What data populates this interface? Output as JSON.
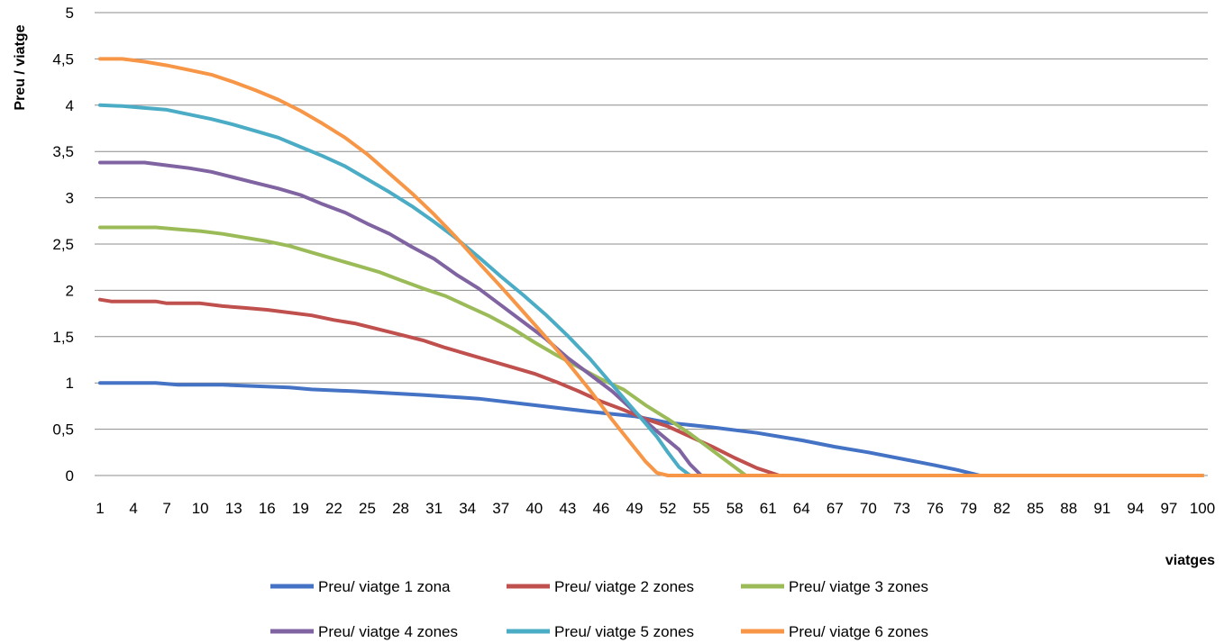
{
  "chart_data": {
    "type": "line",
    "ylabel": "Preu / viatge",
    "xlabel": "viatges",
    "xlim": [
      1,
      100
    ],
    "ylim": [
      0,
      5
    ],
    "y_ticks": [
      "0",
      "0,5",
      "1",
      "1,5",
      "2",
      "2,5",
      "3",
      "3,5",
      "4",
      "4,5",
      "5"
    ],
    "x_ticks": [
      "1",
      "4",
      "7",
      "10",
      "13",
      "16",
      "19",
      "22",
      "25",
      "28",
      "31",
      "34",
      "37",
      "40",
      "43",
      "46",
      "49",
      "52",
      "55",
      "58",
      "61",
      "64",
      "67",
      "70",
      "73",
      "76",
      "79",
      "82",
      "85",
      "88",
      "91",
      "94",
      "97",
      "100"
    ],
    "grid": true,
    "legend_position": "bottom",
    "series": [
      {
        "name": "Preu/ viatge 1 zona",
        "color": "#4472C4",
        "points": [
          [
            1,
            1.0
          ],
          [
            6,
            1.0
          ],
          [
            8,
            0.98
          ],
          [
            12,
            0.98
          ],
          [
            18,
            0.95
          ],
          [
            20,
            0.93
          ],
          [
            24,
            0.91
          ],
          [
            30,
            0.87
          ],
          [
            35,
            0.83
          ],
          [
            40,
            0.76
          ],
          [
            45,
            0.69
          ],
          [
            49,
            0.64
          ],
          [
            52,
            0.57
          ],
          [
            56,
            0.52
          ],
          [
            60,
            0.46
          ],
          [
            64,
            0.38
          ],
          [
            67,
            0.31
          ],
          [
            70,
            0.25
          ],
          [
            73,
            0.18
          ],
          [
            76,
            0.11
          ],
          [
            78,
            0.06
          ],
          [
            80,
            0.0
          ],
          [
            100,
            0.0
          ]
        ]
      },
      {
        "name": "Preu/ viatge 2 zones",
        "color": "#C0504D",
        "points": [
          [
            1,
            1.9
          ],
          [
            2,
            1.88
          ],
          [
            6,
            1.88
          ],
          [
            7,
            1.86
          ],
          [
            10,
            1.86
          ],
          [
            12,
            1.83
          ],
          [
            14,
            1.81
          ],
          [
            16,
            1.79
          ],
          [
            20,
            1.73
          ],
          [
            22,
            1.68
          ],
          [
            24,
            1.64
          ],
          [
            26,
            1.58
          ],
          [
            28,
            1.52
          ],
          [
            30,
            1.46
          ],
          [
            32,
            1.38
          ],
          [
            34,
            1.31
          ],
          [
            36,
            1.24
          ],
          [
            38,
            1.17
          ],
          [
            40,
            1.1
          ],
          [
            42,
            1.01
          ],
          [
            44,
            0.91
          ],
          [
            46,
            0.8
          ],
          [
            48,
            0.71
          ],
          [
            50,
            0.61
          ],
          [
            52,
            0.53
          ],
          [
            54,
            0.42
          ],
          [
            56,
            0.31
          ],
          [
            58,
            0.19
          ],
          [
            60,
            0.08
          ],
          [
            62,
            0.0
          ],
          [
            100,
            0.0
          ]
        ]
      },
      {
        "name": "Preu/ viatge 3 zones",
        "color": "#9BBB59",
        "points": [
          [
            1,
            2.68
          ],
          [
            6,
            2.68
          ],
          [
            8,
            2.66
          ],
          [
            10,
            2.64
          ],
          [
            12,
            2.61
          ],
          [
            14,
            2.57
          ],
          [
            16,
            2.53
          ],
          [
            18,
            2.48
          ],
          [
            20,
            2.41
          ],
          [
            22,
            2.34
          ],
          [
            24,
            2.27
          ],
          [
            26,
            2.2
          ],
          [
            28,
            2.11
          ],
          [
            30,
            2.02
          ],
          [
            32,
            1.94
          ],
          [
            34,
            1.83
          ],
          [
            36,
            1.72
          ],
          [
            38,
            1.59
          ],
          [
            40,
            1.44
          ],
          [
            42,
            1.3
          ],
          [
            44,
            1.17
          ],
          [
            46,
            1.04
          ],
          [
            48,
            0.93
          ],
          [
            50,
            0.76
          ],
          [
            52,
            0.61
          ],
          [
            54,
            0.45
          ],
          [
            56,
            0.27
          ],
          [
            58,
            0.09
          ],
          [
            59,
            0.0
          ],
          [
            100,
            0.0
          ]
        ]
      },
      {
        "name": "Preu/ viatge 4 zones",
        "color": "#8064A2",
        "points": [
          [
            1,
            3.38
          ],
          [
            5,
            3.38
          ],
          [
            7,
            3.35
          ],
          [
            9,
            3.32
          ],
          [
            11,
            3.28
          ],
          [
            13,
            3.22
          ],
          [
            15,
            3.16
          ],
          [
            17,
            3.1
          ],
          [
            19,
            3.03
          ],
          [
            21,
            2.93
          ],
          [
            23,
            2.84
          ],
          [
            25,
            2.72
          ],
          [
            27,
            2.61
          ],
          [
            29,
            2.47
          ],
          [
            31,
            2.34
          ],
          [
            33,
            2.17
          ],
          [
            35,
            2.02
          ],
          [
            37,
            1.84
          ],
          [
            39,
            1.66
          ],
          [
            41,
            1.48
          ],
          [
            43,
            1.27
          ],
          [
            45,
            1.09
          ],
          [
            47,
            0.91
          ],
          [
            49,
            0.69
          ],
          [
            51,
            0.48
          ],
          [
            53,
            0.28
          ],
          [
            54,
            0.12
          ],
          [
            55,
            0.0
          ],
          [
            100,
            0.0
          ]
        ]
      },
      {
        "name": "Preu/ viatge 5 zones",
        "color": "#4BACC6",
        "points": [
          [
            1,
            4.0
          ],
          [
            3,
            3.99
          ],
          [
            5,
            3.97
          ],
          [
            7,
            3.95
          ],
          [
            9,
            3.9
          ],
          [
            11,
            3.85
          ],
          [
            13,
            3.79
          ],
          [
            15,
            3.72
          ],
          [
            17,
            3.65
          ],
          [
            19,
            3.55
          ],
          [
            21,
            3.45
          ],
          [
            23,
            3.34
          ],
          [
            25,
            3.2
          ],
          [
            27,
            3.06
          ],
          [
            29,
            2.91
          ],
          [
            31,
            2.74
          ],
          [
            33,
            2.56
          ],
          [
            35,
            2.36
          ],
          [
            37,
            2.15
          ],
          [
            39,
            1.95
          ],
          [
            41,
            1.74
          ],
          [
            43,
            1.51
          ],
          [
            45,
            1.26
          ],
          [
            47,
            0.98
          ],
          [
            49,
            0.7
          ],
          [
            51,
            0.42
          ],
          [
            52,
            0.25
          ],
          [
            53,
            0.09
          ],
          [
            54,
            0.0
          ],
          [
            100,
            0.0
          ]
        ]
      },
      {
        "name": "Preu/ viatge 6 zones",
        "color": "#F79646",
        "points": [
          [
            1,
            4.5
          ],
          [
            3,
            4.5
          ],
          [
            5,
            4.47
          ],
          [
            7,
            4.43
          ],
          [
            9,
            4.38
          ],
          [
            11,
            4.33
          ],
          [
            13,
            4.25
          ],
          [
            15,
            4.16
          ],
          [
            17,
            4.06
          ],
          [
            19,
            3.94
          ],
          [
            21,
            3.8
          ],
          [
            23,
            3.65
          ],
          [
            25,
            3.47
          ],
          [
            27,
            3.26
          ],
          [
            29,
            3.05
          ],
          [
            31,
            2.82
          ],
          [
            33,
            2.57
          ],
          [
            35,
            2.3
          ],
          [
            37,
            2.04
          ],
          [
            39,
            1.77
          ],
          [
            41,
            1.5
          ],
          [
            43,
            1.22
          ],
          [
            45,
            0.92
          ],
          [
            47,
            0.6
          ],
          [
            49,
            0.3
          ],
          [
            50,
            0.15
          ],
          [
            51,
            0.03
          ],
          [
            52,
            0.0
          ],
          [
            100,
            0.0
          ]
        ]
      }
    ]
  }
}
